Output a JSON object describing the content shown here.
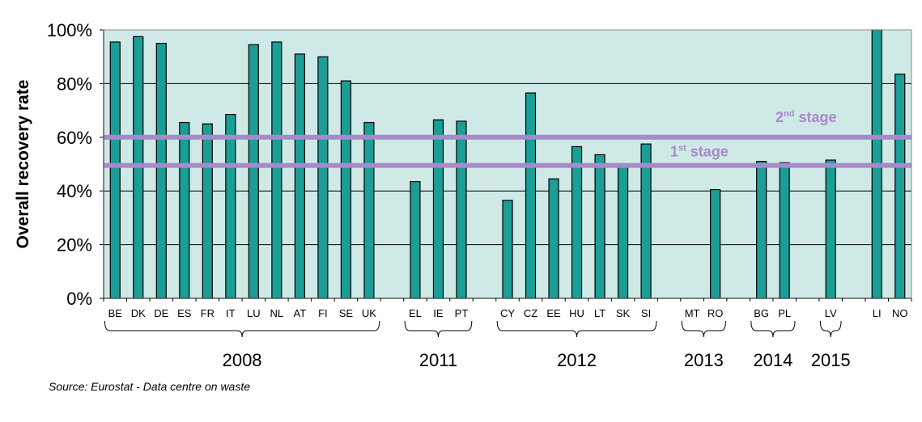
{
  "chart_data": {
    "type": "bar",
    "ylabel": "Overall recovery rate",
    "ylim": [
      0,
      100
    ],
    "yticks": [
      "0%",
      "20%",
      "40%",
      "60%",
      "80%",
      "100%"
    ],
    "grid": true,
    "colors": {
      "plot_bg": "#cfe9e7",
      "bar": "#1a9e96",
      "bar_stroke": "#000000",
      "threshold": "#a889c9",
      "grid": "#000000"
    },
    "categories": [
      "BE",
      "DK",
      "DE",
      "ES",
      "FR",
      "IT",
      "LU",
      "NL",
      "AT",
      "FI",
      "SE",
      "UK",
      "EL",
      "IE",
      "PT",
      "CY",
      "CZ",
      "EE",
      "HU",
      "LT",
      "SK",
      "SI",
      "MT",
      "RO",
      "BG",
      "PL",
      "LV",
      "LI",
      "NO"
    ],
    "values": [
      95.5,
      97.5,
      95,
      65.5,
      65,
      68.5,
      94.5,
      95.5,
      91,
      90,
      81,
      65.5,
      43.5,
      66.5,
      66,
      36.5,
      76.5,
      44.5,
      56.5,
      53.5,
      49,
      57.5,
      null,
      40.5,
      51,
      50.5,
      51.5,
      100,
      83.5
    ],
    "groups": [
      {
        "label": "2008",
        "start": 0,
        "end": 11
      },
      {
        "label": "2011",
        "start": 12,
        "end": 14
      },
      {
        "label": "2012",
        "start": 15,
        "end": 21
      },
      {
        "label": "2013",
        "start": 22,
        "end": 23
      },
      {
        "label": "2014",
        "start": 24,
        "end": 25
      },
      {
        "label": "2015",
        "start": 26,
        "end": 26
      }
    ],
    "thresholds": [
      {
        "base": "2",
        "sup": "nd",
        "suffix": " stage",
        "value": 60
      },
      {
        "base": "1",
        "sup": "st",
        "suffix": " stage",
        "value": 49.5
      }
    ]
  },
  "source": "Source: Eurostat - Data centre on waste"
}
